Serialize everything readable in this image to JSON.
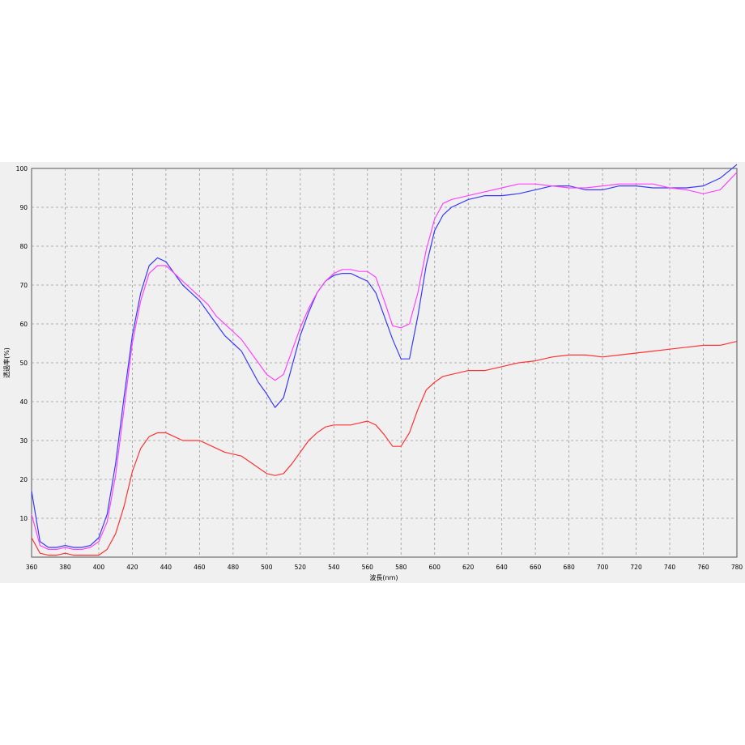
{
  "chart_data": {
    "type": "line",
    "title": "",
    "xlabel": "波長(nm)",
    "ylabel": "透過率(%)",
    "xlim": [
      360,
      780
    ],
    "ylim": [
      0,
      100
    ],
    "xticks": [
      360,
      380,
      400,
      420,
      440,
      460,
      480,
      500,
      520,
      540,
      560,
      580,
      600,
      620,
      640,
      660,
      680,
      700,
      720,
      740,
      760,
      780
    ],
    "xtick_labels": [
      "360",
      "380",
      "400",
      "420",
      "440",
      "460",
      "480",
      "500",
      "520",
      "540",
      "560",
      "580",
      "600",
      "620",
      "640",
      "660",
      "680",
      "700",
      "720",
      "740",
      "760",
      "780"
    ],
    "yticks": [
      10,
      20,
      30,
      40,
      50,
      60,
      70,
      80,
      90,
      100
    ],
    "ytick_labels": [
      "10",
      "20",
      "30",
      "40",
      "50",
      "60",
      "70",
      "80",
      "90",
      "100"
    ],
    "grid": true,
    "legend": "none",
    "series": [
      {
        "color": "#3a3aff",
        "x": [
          360,
          365,
          370,
          375,
          380,
          385,
          390,
          395,
          400,
          405,
          410,
          415,
          420,
          425,
          430,
          435,
          440,
          445,
          450,
          455,
          460,
          465,
          470,
          475,
          480,
          485,
          490,
          495,
          500,
          505,
          510,
          515,
          520,
          525,
          530,
          535,
          540,
          545,
          550,
          555,
          560,
          565,
          570,
          575,
          580,
          585,
          590,
          595,
          600,
          605,
          610,
          620,
          630,
          640,
          650,
          660,
          670,
          680,
          690,
          700,
          710,
          720,
          730,
          740,
          750,
          760,
          770,
          780
        ],
        "y": [
          17,
          4,
          2.5,
          2.5,
          3,
          2.5,
          2.5,
          3,
          5,
          11,
          24,
          41,
          57,
          68,
          75,
          77,
          76,
          73,
          70,
          68,
          66,
          63,
          60,
          57,
          55,
          53,
          49,
          45,
          42,
          38.5,
          41,
          49,
          57,
          63,
          68,
          71,
          72.5,
          73,
          73,
          72,
          71,
          68,
          62,
          56,
          51,
          51,
          62,
          75,
          84,
          88,
          90,
          92,
          93,
          93,
          93.5,
          94.5,
          95.5,
          95.5,
          94.5,
          94.5,
          95.5,
          95.5,
          95,
          95,
          95,
          95.5,
          97.5,
          101
        ]
      },
      {
        "color": "#ff44ff",
        "x": [
          360,
          365,
          370,
          375,
          380,
          385,
          390,
          395,
          400,
          405,
          410,
          415,
          420,
          425,
          430,
          435,
          440,
          445,
          450,
          455,
          460,
          465,
          470,
          475,
          480,
          485,
          490,
          495,
          500,
          505,
          510,
          515,
          520,
          525,
          530,
          535,
          540,
          545,
          550,
          555,
          560,
          565,
          570,
          575,
          580,
          585,
          590,
          595,
          600,
          605,
          610,
          620,
          630,
          640,
          650,
          660,
          670,
          680,
          690,
          700,
          710,
          720,
          730,
          740,
          750,
          760,
          770,
          780
        ],
        "y": [
          11,
          3,
          2,
          2,
          2.5,
          2,
          2,
          2.5,
          4,
          9,
          21,
          38,
          55,
          66,
          73,
          75,
          75,
          73,
          71,
          69,
          67,
          65,
          62,
          60,
          58,
          56,
          53,
          50,
          47,
          45.5,
          47,
          53,
          59,
          64,
          68,
          71,
          73,
          74,
          74,
          73.5,
          73.5,
          72,
          66,
          59.5,
          59,
          60,
          68,
          79,
          87,
          91,
          92,
          93,
          94,
          95,
          96,
          96,
          95.5,
          95,
          95,
          95.5,
          96,
          96,
          96,
          95,
          94.5,
          93.5,
          94.5,
          99
        ]
      },
      {
        "color": "#ff3333",
        "x": [
          360,
          365,
          370,
          375,
          380,
          385,
          390,
          395,
          400,
          405,
          410,
          415,
          420,
          425,
          430,
          435,
          440,
          445,
          450,
          455,
          460,
          465,
          470,
          475,
          480,
          485,
          490,
          495,
          500,
          505,
          510,
          515,
          520,
          525,
          530,
          535,
          540,
          545,
          550,
          555,
          560,
          565,
          570,
          575,
          580,
          585,
          590,
          595,
          600,
          605,
          610,
          620,
          630,
          640,
          650,
          660,
          670,
          680,
          690,
          700,
          710,
          720,
          730,
          740,
          750,
          760,
          770,
          780
        ],
        "y": [
          5,
          1,
          0.5,
          0.5,
          1,
          0.5,
          0.5,
          0.5,
          0.5,
          2,
          6,
          13,
          22,
          28,
          31,
          32,
          32,
          31,
          30,
          30,
          30,
          29,
          28,
          27,
          26.5,
          26,
          24.5,
          23,
          21.5,
          21,
          21.5,
          24,
          27,
          30,
          32,
          33.5,
          34,
          34,
          34,
          34.5,
          35,
          34,
          31.5,
          28.5,
          28.5,
          32,
          38,
          43,
          45,
          46.5,
          47,
          48,
          48,
          49,
          50,
          50.5,
          51.5,
          52,
          52,
          51.5,
          52,
          52.5,
          53,
          53.5,
          54,
          54.5,
          54.5,
          55.5
        ]
      }
    ]
  }
}
